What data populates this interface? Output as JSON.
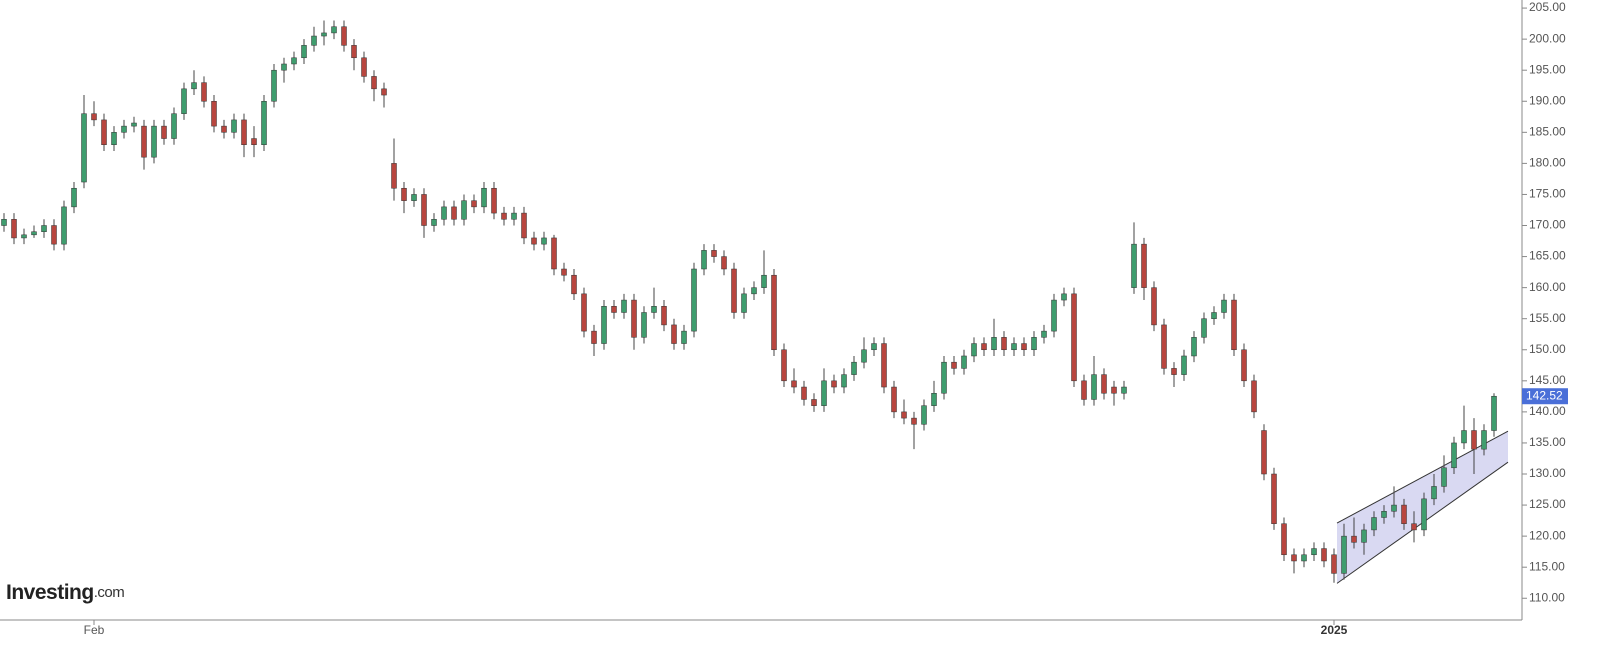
{
  "chart_data": {
    "type": "candlestick",
    "brand": "Investing",
    "brand_suffix": ".com",
    "up_color": "#3f9d6e",
    "down_color": "#b8463f",
    "xlim": [
      -0.4,
      151.8
    ],
    "xticks": [
      {
        "value": 9,
        "label": "Feb"
      },
      {
        "value": 133,
        "label": "2025"
      }
    ],
    "ylim": [
      106.5,
      206.3
    ],
    "yticks": [
      {
        "value": 110,
        "label": "110.00"
      },
      {
        "value": 115,
        "label": "115.00"
      },
      {
        "value": 120,
        "label": "120.00"
      },
      {
        "value": 125,
        "label": "125.00"
      },
      {
        "value": 130,
        "label": "130.00"
      },
      {
        "value": 135,
        "label": "135.00"
      },
      {
        "value": 140,
        "label": "140.00"
      },
      {
        "value": 145,
        "label": "145.00"
      },
      {
        "value": 150,
        "label": "150.00"
      },
      {
        "value": 155,
        "label": "155.00"
      },
      {
        "value": 160,
        "label": "160.00"
      },
      {
        "value": 165,
        "label": "165.00"
      },
      {
        "value": 170,
        "label": "170.00"
      },
      {
        "value": 175,
        "label": "175.00"
      },
      {
        "value": 180,
        "label": "180.00"
      },
      {
        "value": 185,
        "label": "185.00"
      },
      {
        "value": 190,
        "label": "190.00"
      },
      {
        "value": 195,
        "label": "195.00"
      },
      {
        "value": 200,
        "label": "200.00"
      },
      {
        "value": 205,
        "label": "205.00"
      }
    ],
    "last_price": 142.52,
    "channel": {
      "start": 133.3,
      "end": 150.4,
      "upper": [
        122.1,
        136.9
      ],
      "lower": [
        112.4,
        131.9
      ],
      "color": "#d9d9f2"
    },
    "ohlc": [
      [
        170,
        172,
        169,
        171
      ],
      [
        171,
        172,
        167,
        168
      ],
      [
        168,
        169.5,
        167,
        168.5
      ],
      [
        168.5,
        170,
        168,
        169
      ],
      [
        169,
        171,
        168,
        170
      ],
      [
        170,
        171,
        166,
        167
      ],
      [
        167,
        174,
        166,
        173
      ],
      [
        173,
        177,
        172,
        176
      ],
      [
        177,
        191,
        176,
        188
      ],
      [
        188,
        190,
        186,
        187
      ],
      [
        187,
        188,
        182,
        183
      ],
      [
        183,
        186,
        182,
        185
      ],
      [
        185,
        187,
        184,
        186
      ],
      [
        186,
        187.5,
        185,
        186.5
      ],
      [
        186,
        187,
        179,
        181
      ],
      [
        181,
        187,
        180,
        186
      ],
      [
        186,
        187,
        183,
        184
      ],
      [
        184,
        189,
        183,
        188
      ],
      [
        188,
        193,
        187,
        192
      ],
      [
        192,
        195,
        191,
        193
      ],
      [
        193,
        194,
        189,
        190
      ],
      [
        190,
        191,
        185,
        186
      ],
      [
        186,
        187,
        184,
        185
      ],
      [
        185,
        188,
        184,
        187
      ],
      [
        187,
        188,
        181,
        183
      ],
      [
        184,
        186,
        181,
        183
      ],
      [
        183,
        191,
        182,
        190
      ],
      [
        190,
        196,
        189,
        195
      ],
      [
        195,
        197,
        193,
        196
      ],
      [
        196,
        198,
        195,
        197
      ],
      [
        197,
        200,
        196,
        199
      ],
      [
        199,
        202,
        198,
        200.5
      ],
      [
        200.5,
        203,
        199,
        201
      ],
      [
        201,
        203,
        200,
        202
      ],
      [
        202,
        203,
        198,
        199
      ],
      [
        199,
        200,
        195,
        197
      ],
      [
        197,
        198,
        193,
        194
      ],
      [
        194,
        195,
        190,
        192
      ],
      [
        192,
        193,
        189,
        191
      ],
      [
        180,
        184,
        174,
        176
      ],
      [
        176,
        177,
        172,
        174
      ],
      [
        174,
        176,
        173,
        175
      ],
      [
        175,
        176,
        168,
        170
      ],
      [
        170,
        172,
        169,
        171
      ],
      [
        171,
        174,
        170,
        173
      ],
      [
        173,
        174,
        170,
        171
      ],
      [
        171,
        175,
        170,
        174
      ],
      [
        174,
        175,
        172,
        173
      ],
      [
        173,
        177,
        172,
        176
      ],
      [
        176,
        177,
        171,
        172
      ],
      [
        172,
        173,
        170,
        171
      ],
      [
        171,
        173,
        170,
        172
      ],
      [
        172,
        173,
        167,
        168
      ],
      [
        168,
        169,
        166,
        167
      ],
      [
        167,
        169,
        166,
        168
      ],
      [
        168,
        168.5,
        162,
        163
      ],
      [
        163,
        164,
        161,
        162
      ],
      [
        162,
        163,
        158,
        159
      ],
      [
        159,
        160,
        152,
        153
      ],
      [
        153,
        154,
        149,
        151
      ],
      [
        151,
        158,
        150,
        157
      ],
      [
        157,
        158,
        155,
        156
      ],
      [
        156,
        159,
        155,
        158
      ],
      [
        158,
        159,
        150,
        152
      ],
      [
        152,
        157,
        151,
        156
      ],
      [
        156,
        160,
        155,
        157
      ],
      [
        157,
        158,
        153,
        154
      ],
      [
        154,
        155,
        150,
        151
      ],
      [
        151,
        154,
        150,
        153
      ],
      [
        153,
        164,
        152,
        163
      ],
      [
        163,
        167,
        162,
        166
      ],
      [
        166,
        167,
        164,
        165
      ],
      [
        165,
        166,
        162,
        163
      ],
      [
        163,
        164,
        155,
        156
      ],
      [
        156,
        160,
        155,
        159
      ],
      [
        159,
        161,
        158,
        160
      ],
      [
        160,
        166,
        159,
        162
      ],
      [
        162,
        163,
        149,
        150
      ],
      [
        150,
        151,
        144,
        145
      ],
      [
        145,
        147,
        143,
        144
      ],
      [
        144,
        145,
        141,
        142
      ],
      [
        142,
        143,
        140,
        141
      ],
      [
        141,
        147,
        140,
        145
      ],
      [
        145,
        146,
        143,
        144
      ],
      [
        144,
        147,
        143,
        146
      ],
      [
        146,
        149,
        145,
        148
      ],
      [
        148,
        152,
        147,
        150
      ],
      [
        150,
        152,
        149,
        151
      ],
      [
        151,
        152,
        143,
        144
      ],
      [
        144,
        145,
        139,
        140
      ],
      [
        140,
        142,
        138,
        139
      ],
      [
        139,
        140,
        134,
        138
      ],
      [
        138,
        142,
        137,
        141
      ],
      [
        141,
        145,
        140,
        143
      ],
      [
        143,
        149,
        142,
        148
      ],
      [
        148,
        149,
        146,
        147
      ],
      [
        147,
        150,
        146,
        149
      ],
      [
        149,
        152,
        148,
        151
      ],
      [
        151,
        152,
        149,
        150
      ],
      [
        150,
        155,
        149,
        152
      ],
      [
        152,
        153,
        149,
        150
      ],
      [
        150,
        152,
        149,
        151
      ],
      [
        151,
        152,
        149,
        150
      ],
      [
        150,
        153,
        149,
        152
      ],
      [
        152,
        154,
        151,
        153
      ],
      [
        153,
        159,
        152,
        158
      ],
      [
        158,
        160,
        157,
        159
      ],
      [
        159,
        160,
        144,
        145
      ],
      [
        145,
        146,
        141,
        142
      ],
      [
        142,
        149,
        141,
        146
      ],
      [
        146,
        147,
        142,
        143
      ],
      [
        144,
        145,
        141,
        143
      ],
      [
        143,
        145,
        142,
        144
      ],
      [
        160,
        170.5,
        159,
        167
      ],
      [
        167,
        168,
        158,
        160
      ],
      [
        160,
        161,
        153,
        154
      ],
      [
        154,
        155,
        146,
        147
      ],
      [
        147,
        148,
        144,
        146
      ],
      [
        146,
        150,
        145,
        149
      ],
      [
        149,
        153,
        148,
        152
      ],
      [
        152,
        156,
        151,
        155
      ],
      [
        155,
        157,
        154,
        156
      ],
      [
        156,
        159,
        155,
        158
      ],
      [
        158,
        159,
        149,
        150
      ],
      [
        150,
        151,
        144,
        145
      ],
      [
        145,
        146,
        139,
        140
      ],
      [
        137,
        138,
        129,
        130
      ],
      [
        130,
        131,
        121,
        122
      ],
      [
        122,
        123,
        116,
        117
      ],
      [
        117,
        118,
        114,
        116
      ],
      [
        116,
        118,
        115,
        117
      ],
      [
        117,
        119,
        116,
        118
      ],
      [
        118,
        119,
        115,
        116
      ],
      [
        117,
        118,
        112.5,
        114
      ],
      [
        114,
        122,
        113,
        120
      ],
      [
        120,
        123,
        118,
        119
      ],
      [
        119,
        122,
        117,
        121
      ],
      [
        121,
        124,
        120,
        123
      ],
      [
        123,
        125,
        122,
        124
      ],
      [
        124,
        128,
        123,
        125
      ],
      [
        125,
        126,
        121,
        122
      ],
      [
        122,
        124,
        119,
        121
      ],
      [
        121,
        127,
        120,
        126
      ],
      [
        126,
        130,
        125,
        128
      ],
      [
        128,
        133,
        127,
        131
      ],
      [
        131,
        136,
        130,
        135
      ],
      [
        135,
        141,
        134,
        137
      ],
      [
        137,
        139,
        130,
        134
      ],
      [
        134,
        138,
        133,
        137
      ],
      [
        137,
        143,
        136,
        142.52
      ]
    ]
  }
}
